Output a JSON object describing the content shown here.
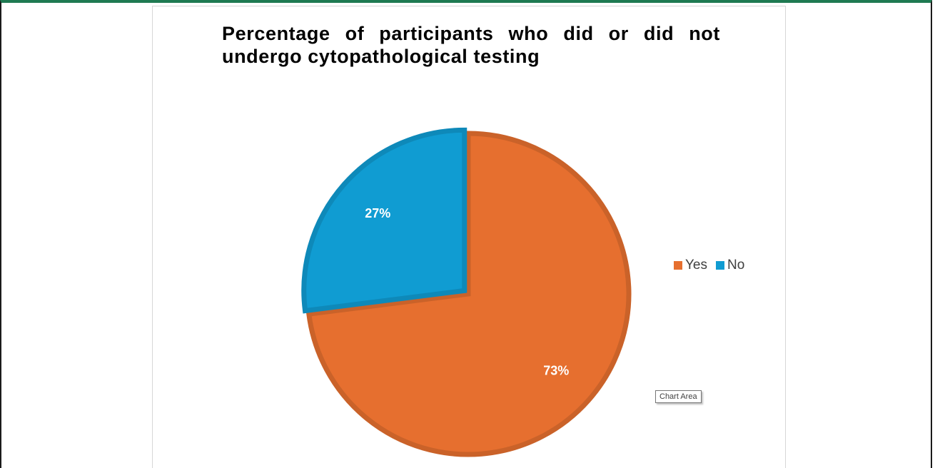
{
  "chart_data": {
    "type": "pie",
    "title": "Percentage of participants who did or did not undergo cytopathological testing",
    "categories": [
      "Yes",
      "No"
    ],
    "values": [
      73,
      27
    ],
    "labels": [
      "73%",
      "27%"
    ],
    "colors": [
      "#e66f2f",
      "#109cd2"
    ],
    "legend_position": "right",
    "exploded_slice": "No"
  },
  "legend": {
    "items": [
      {
        "label": "Yes",
        "color": "#e66f2f"
      },
      {
        "label": "No",
        "color": "#109cd2"
      }
    ]
  },
  "tooltip": {
    "text": "Chart Area"
  }
}
